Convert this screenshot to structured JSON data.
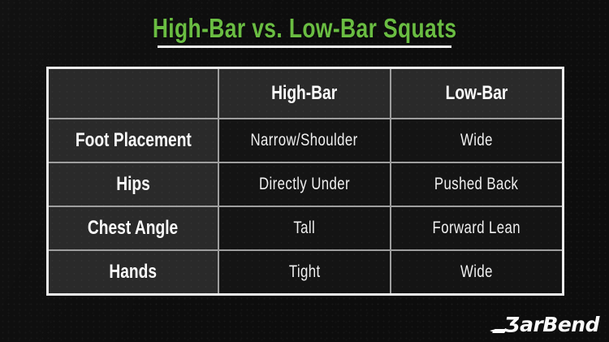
{
  "chart_data": {
    "type": "table",
    "title": "High-Bar vs. Low-Bar Squats",
    "columns": [
      "",
      "High-Bar",
      "Low-Bar"
    ],
    "rows": [
      [
        "Foot Placement",
        "Narrow/Shoulder",
        "Wide"
      ],
      [
        "Hips",
        "Directly Under",
        "Pushed Back"
      ],
      [
        "Chest Angle",
        "Tall",
        "Forward Lean"
      ],
      [
        "Hands",
        "Tight",
        "Wide"
      ]
    ],
    "layout": "comparison table, header row + row-label column highlighted"
  },
  "branding": {
    "brand_name": "BarBend",
    "logo_mark_glyph": "Ʒ",
    "logo_text": "arBend"
  },
  "colors": {
    "background": "#0d0d0d",
    "title_green": "#6abd42",
    "underline_white": "#f2f2f2",
    "header_cell_bg": "#2a2a2a",
    "data_cell_bg": "#141414",
    "outer_border": "#ececec",
    "inner_border": "#9e9e9e",
    "text_white": "#f5f5f5"
  }
}
